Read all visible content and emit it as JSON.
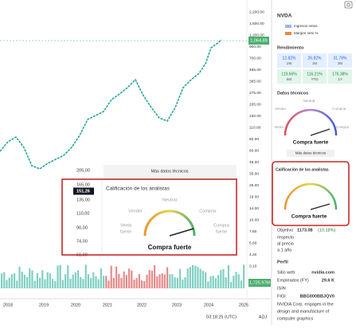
{
  "header": {
    "symbol": "NVDA",
    "legend": [
      "Ingresos netos",
      "Margen neto %"
    ]
  },
  "price_axis": [
    "2,200.00",
    "1,600.00",
    "1,200.00",
    "900.00",
    "700.00",
    "485.00",
    "365.00",
    "275.00",
    "205.00",
    "150.00",
    "110.00",
    "82.00",
    "60.00",
    "46.00",
    "35.00",
    "25.00",
    "19.00",
    "14.00",
    "10.00",
    "7.50",
    "5.60",
    "4.20",
    "3.10"
  ],
  "last_price": "1,064.89",
  "volume_label": "1,725.97M",
  "years": [
    "2018",
    "2019",
    "2020",
    "2021",
    "2022",
    "2023",
    "2024",
    "2025"
  ],
  "footer": {
    "time": "03:18:25 (UTC)",
    "adj": "ADJ"
  },
  "overlay": {
    "prices": [
      "205,00",
      "165,00",
      "151,26",
      "135,00",
      "110,00",
      "90,00",
      "74,00",
      "61,00"
    ],
    "more": "Más datos técnicos",
    "title": "Calificación de los analistas",
    "neutral": "Neutral",
    "sell": "Vender",
    "buy": "Comprar",
    "strong_sell": [
      "Venta",
      "fuerte"
    ],
    "strong_buy": [
      "Compra",
      "fuerte"
    ],
    "rating": "Compra fuerte"
  },
  "panel": {
    "performance_title": "Rendimiento",
    "performance": [
      [
        "12.82%",
        "1W"
      ],
      [
        "26.82%",
        "1M"
      ],
      [
        "31.78%",
        "3M"
      ],
      [
        "119.66%",
        "6M"
      ],
      [
        "116.21%",
        "YTD"
      ],
      [
        "176.38%",
        "1Y"
      ]
    ],
    "tech_title": "Datos técnicos",
    "tech_labels": [
      "Neutral",
      "Vender",
      "Comprar",
      "Venta",
      "Compra"
    ],
    "tech_rating": "Compra fuerte",
    "more": "Más datos técnicos",
    "analyst_title": "Calificación de los analistas",
    "analyst_rating": "Compra fuerte",
    "target": [
      "Objetivo",
      "1173.08",
      "(10.18%)",
      "respecto",
      "al precio",
      "a 1 año"
    ],
    "profile_title": "Perfil",
    "profile": [
      [
        "Sitio web",
        "nvidia.com"
      ],
      [
        "Empleados (FY)",
        "29.6 K"
      ],
      [
        "ISIN",
        ""
      ],
      [
        "FIGI",
        "BBG000BBJQV0"
      ]
    ],
    "description": [
      "NVIDIA Corp. engages in the",
      "design and manufacture of",
      "computer graphics"
    ]
  }
}
